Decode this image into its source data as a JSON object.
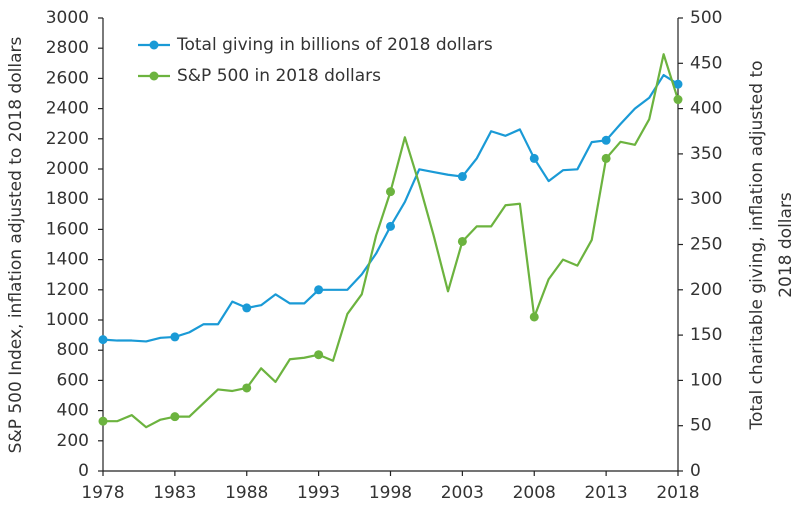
{
  "chart_data": {
    "type": "line",
    "x": [
      1978,
      1979,
      1980,
      1981,
      1982,
      1983,
      1984,
      1985,
      1986,
      1987,
      1988,
      1989,
      1990,
      1991,
      1992,
      1993,
      1994,
      1995,
      1996,
      1997,
      1998,
      1999,
      2000,
      2001,
      2002,
      2003,
      2004,
      2005,
      2006,
      2007,
      2008,
      2009,
      2010,
      2011,
      2012,
      2013,
      2014,
      2015,
      2016,
      2017,
      2018
    ],
    "xlim": [
      1978,
      2018
    ],
    "xticks": [
      1978,
      1983,
      1988,
      1993,
      1998,
      2003,
      2008,
      2013,
      2018
    ],
    "ylabel": "S&P 500 Index, inflation adjusted to 2018 dollars",
    "ylim": [
      0,
      3000
    ],
    "yticks": [
      0,
      200,
      400,
      600,
      800,
      1000,
      1200,
      1400,
      1600,
      1800,
      2000,
      2200,
      2400,
      2600,
      2800,
      3000
    ],
    "y2label": [
      "Total charitable giving, inflation adjusted to",
      "2018 dollars"
    ],
    "y2lim": [
      0,
      500
    ],
    "y2ticks": [
      0,
      50,
      100,
      150,
      200,
      250,
      300,
      350,
      400,
      450,
      500
    ],
    "series": [
      {
        "name": "Total giving in billions of 2018 dollars",
        "color": "#1a9ad6",
        "axis": "y2",
        "values": [
          145,
          144,
          144,
          143,
          147,
          148,
          153,
          162,
          162,
          187,
          180,
          183,
          195,
          185,
          185,
          200,
          200,
          200,
          217,
          240,
          270,
          297,
          333,
          330,
          327,
          325,
          345,
          375,
          370,
          377,
          345,
          320,
          332,
          333,
          363,
          365,
          383,
          400,
          412,
          437,
          427
        ]
      },
      {
        "name": "S&P 500 in 2018 dollars",
        "color": "#6cb33f",
        "axis": "y",
        "values": [
          330,
          330,
          370,
          290,
          340,
          360,
          360,
          450,
          540,
          530,
          550,
          680,
          590,
          740,
          750,
          770,
          730,
          1040,
          1170,
          1560,
          1850,
          2210,
          1900,
          1560,
          1190,
          1520,
          1620,
          1620,
          1760,
          1770,
          1020,
          1270,
          1400,
          1360,
          1530,
          2070,
          2180,
          2160,
          2330,
          2760,
          2460
        ]
      }
    ]
  }
}
